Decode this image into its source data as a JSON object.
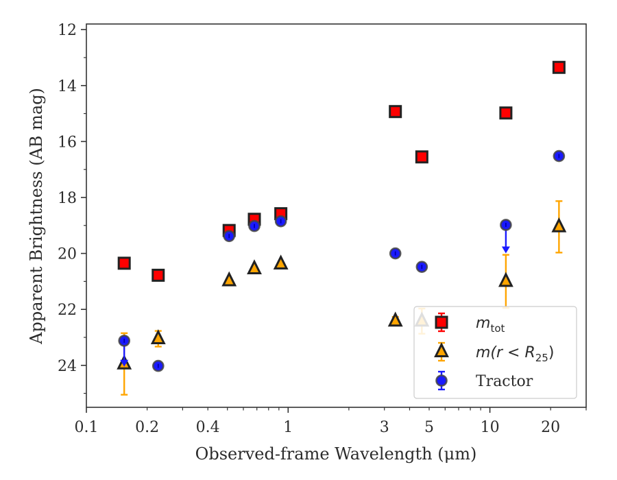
{
  "chart_data": {
    "type": "scatter",
    "title": "",
    "xlabel": "Observed-frame Wavelength (μm)",
    "ylabel": "Apparent Brightness (AB mag)",
    "xscale": "log",
    "xlim": [
      0.1,
      30
    ],
    "ylim": [
      25.5,
      11.8
    ],
    "y_inverted": true,
    "x_ticks": [
      0.1,
      0.2,
      0.4,
      1,
      3,
      5,
      10,
      20
    ],
    "x_tick_labels": [
      "0.1",
      "0.2",
      "0.4",
      "1",
      "3",
      "5",
      "10",
      "20"
    ],
    "y_ticks": [
      12,
      14,
      16,
      18,
      20,
      22,
      24
    ],
    "y_tick_labels": [
      "12",
      "14",
      "16",
      "18",
      "20",
      "22",
      "24"
    ],
    "grid": false,
    "legend_position": "bottom-right",
    "series": [
      {
        "name": "m_tot",
        "legend_label": "m_tot",
        "marker": "square",
        "face_color": "#ff0000",
        "edge_color": "#222222",
        "error_color": "#ff0000",
        "points": [
          {
            "x": 0.154,
            "y": 20.35,
            "yerr": 0
          },
          {
            "x": 0.227,
            "y": 20.78,
            "yerr": 0
          },
          {
            "x": 0.51,
            "y": 19.18,
            "yerr": 0
          },
          {
            "x": 0.68,
            "y": 18.78,
            "yerr": 0
          },
          {
            "x": 0.92,
            "y": 18.58,
            "yerr": 0
          },
          {
            "x": 3.4,
            "y": 14.93,
            "yerr": 0
          },
          {
            "x": 4.6,
            "y": 16.55,
            "yerr": 0
          },
          {
            "x": 12.0,
            "y": 14.98,
            "yerr": 0
          },
          {
            "x": 22.0,
            "y": 13.35,
            "yerr": 0
          }
        ]
      },
      {
        "name": "m(r < R25)",
        "legend_label": "m(r < R25)",
        "marker": "triangle",
        "face_color": "#ffa500",
        "edge_color": "#222222",
        "error_color": "#ffa500",
        "points": [
          {
            "x": 0.154,
            "y": 23.95,
            "yerr_low": 1.1,
            "yerr_high": 1.1
          },
          {
            "x": 0.227,
            "y": 23.05,
            "yerr_low": 0.28,
            "yerr_high": 0.28
          },
          {
            "x": 0.51,
            "y": 20.98,
            "yerr_low": 0,
            "yerr_high": 0
          },
          {
            "x": 0.68,
            "y": 20.55,
            "yerr_low": 0,
            "yerr_high": 0
          },
          {
            "x": 0.92,
            "y": 20.38,
            "yerr_low": 0,
            "yerr_high": 0
          },
          {
            "x": 3.4,
            "y": 22.42,
            "yerr_low": 0.15,
            "yerr_high": 0.15
          },
          {
            "x": 4.6,
            "y": 22.42,
            "yerr_low": 0.45,
            "yerr_high": 0.45
          },
          {
            "x": 12.0,
            "y": 21.0,
            "yerr_low": 0.95,
            "yerr_high": 0.95
          },
          {
            "x": 22.0,
            "y": 19.05,
            "yerr_low": 0.92,
            "yerr_high": 0.92
          }
        ]
      },
      {
        "name": "Tractor",
        "legend_label": "Tractor",
        "marker": "circle",
        "face_color": "#1a1aff",
        "edge_color": "#444444",
        "error_color": "#1a1aff",
        "points": [
          {
            "x": 0.154,
            "y": 23.12,
            "yerr_low": 0,
            "yerr_high": 0,
            "arrow": {
              "to": 24.0
            }
          },
          {
            "x": 0.227,
            "y": 24.02,
            "yerr_low": 0,
            "yerr_high": 0
          },
          {
            "x": 0.51,
            "y": 19.38,
            "yerr_low": 0,
            "yerr_high": 0
          },
          {
            "x": 0.68,
            "y": 19.02,
            "yerr_low": 0,
            "yerr_high": 0
          },
          {
            "x": 0.92,
            "y": 18.85,
            "yerr_low": 0,
            "yerr_high": 0
          },
          {
            "x": 3.4,
            "y": 20.0,
            "yerr_low": 0,
            "yerr_high": 0
          },
          {
            "x": 4.6,
            "y": 20.48,
            "yerr_low": 0,
            "yerr_high": 0
          },
          {
            "x": 12.0,
            "y": 18.98,
            "yerr_low": 0,
            "yerr_high": 0,
            "arrow": {
              "to": 19.95
            }
          },
          {
            "x": 22.0,
            "y": 16.52,
            "yerr_low": 0,
            "yerr_high": 0
          }
        ]
      }
    ],
    "legend": [
      {
        "series": "m_tot",
        "base": "m",
        "sub": "tot"
      },
      {
        "series": "m(r < R25)",
        "base": "m(r < R",
        "sub": "25",
        "tail": ")"
      },
      {
        "series": "Tractor",
        "text": "Tractor"
      }
    ]
  }
}
